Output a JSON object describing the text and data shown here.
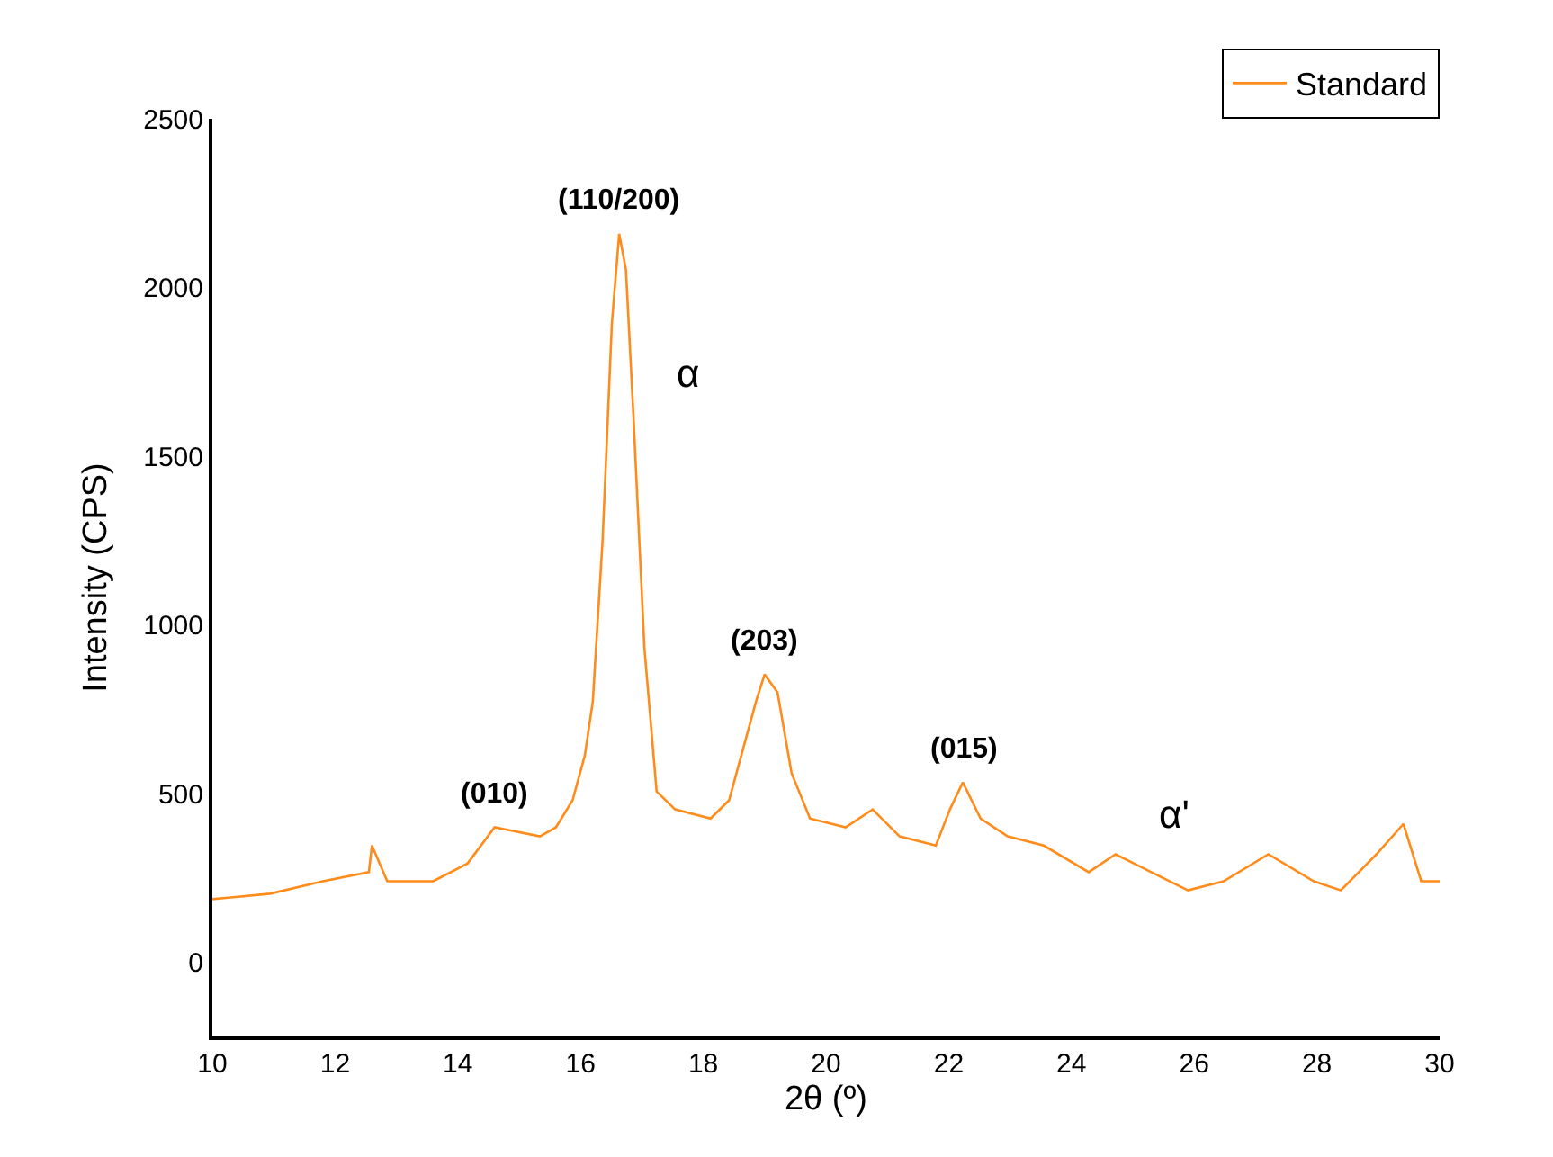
{
  "chart_data": {
    "type": "line",
    "xlabel": "2θ (º)",
    "ylabel": "Intensity (CPS)",
    "x": [
      10,
      10.94,
      11.8,
      12.55,
      12.6,
      12.85,
      13.6,
      14.16,
      14.6,
      15.34,
      15.6,
      15.87,
      16.07,
      16.2,
      16.36,
      16.51,
      16.63,
      16.74,
      16.86,
      17.04,
      17.24,
      17.54,
      18.12,
      18.42,
      18.62,
      18.86,
      19.0,
      19.21,
      19.44,
      19.74,
      20.32,
      20.76,
      21.2,
      21.79,
      22.02,
      22.23,
      22.52,
      22.96,
      23.55,
      24.28,
      24.72,
      25.3,
      25.9,
      26.48,
      27.21,
      27.95,
      28.39,
      28.97,
      29.41,
      29.7,
      30
    ],
    "series": [
      {
        "name": "Standard",
        "color": "#ff8c1a",
        "values": [
          187,
          203,
          240,
          267,
          346,
          240,
          240,
          293,
          400,
          373,
          400,
          480,
          613,
          773,
          1253,
          1892,
          2159,
          2052,
          1626,
          933,
          506,
          453,
          426,
          480,
          613,
          773,
          853,
          800,
          560,
          426,
          400,
          453,
          373,
          346,
          453,
          533,
          426,
          373,
          346,
          267,
          320,
          267,
          213,
          240,
          320,
          240,
          213,
          320,
          410,
          240,
          240
        ]
      }
    ],
    "xlim": [
      10,
      30
    ],
    "xticks": [
      10,
      12,
      14,
      16,
      18,
      20,
      22,
      24,
      26,
      28,
      30
    ],
    "ylim": [
      -220,
      2500
    ],
    "yticks": [
      0,
      500,
      1000,
      1500,
      2000,
      2500
    ],
    "legend": "top right",
    "line_style": "solid",
    "marker": "none",
    "annotations": [
      {
        "text": "(110/200)",
        "x": 16.63,
        "y": 2159
      },
      {
        "text": "α",
        "x": 16.86,
        "y": 1626
      },
      {
        "text": "(010)",
        "x": 14.6,
        "y": 400
      },
      {
        "text": "(203)",
        "x": 19.0,
        "y": 853
      },
      {
        "text": "(015)",
        "x": 22.23,
        "y": 533
      },
      {
        "text": "α'",
        "x": 24.72,
        "y": 320
      }
    ]
  }
}
